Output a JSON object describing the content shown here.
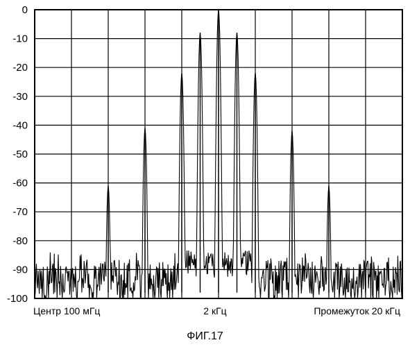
{
  "chart_data": {
    "type": "line",
    "title": "",
    "xlabel": "",
    "ylabel": "",
    "ylim": [
      -100,
      0
    ],
    "yticks": [
      "0",
      "-10",
      "-20",
      "-30",
      "-40",
      "-50",
      "-60",
      "-70",
      "-80",
      "-90",
      "-100"
    ],
    "x_labels": {
      "left": "Центр 100 мГц",
      "center": "2 кГц",
      "right": "Промежуток 20 кГц"
    },
    "grid": true,
    "x_range_khz": [
      -10,
      10
    ],
    "noise_floor_db": -93,
    "series": [
      {
        "peaks": [
          {
            "x": -6,
            "y": -61
          },
          {
            "x": -4,
            "y": -41
          },
          {
            "x": -2,
            "y": -22
          },
          {
            "x": -1,
            "y": -8
          },
          {
            "x": 0,
            "y": 0
          },
          {
            "x": 1,
            "y": -8
          },
          {
            "x": 2,
            "y": -22
          },
          {
            "x": 4,
            "y": -42
          },
          {
            "x": 6,
            "y": -61
          }
        ]
      }
    ]
  },
  "caption": "ФИГ.17"
}
